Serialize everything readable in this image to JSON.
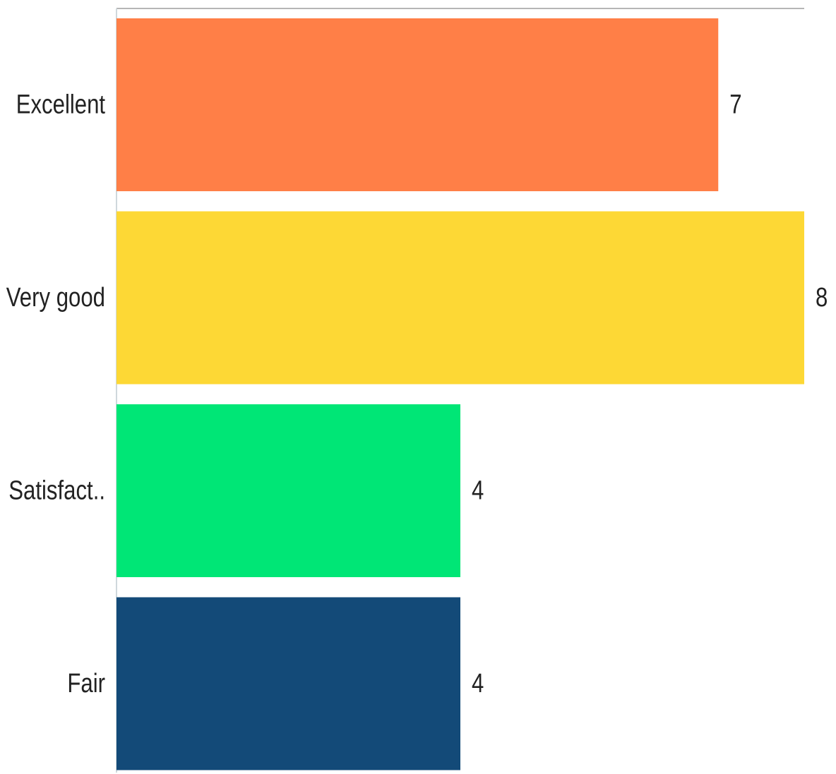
{
  "chart_data": {
    "type": "bar",
    "orientation": "horizontal",
    "categories": [
      "Excellent",
      "Very good",
      "Satisfact..",
      "Fair"
    ],
    "values": [
      7,
      8,
      4,
      4
    ],
    "colors": [
      "#FF7F47",
      "#FDD835",
      "#00E676",
      "#134A78"
    ],
    "title": "",
    "xlabel": "",
    "ylabel": "",
    "xlim": [
      0,
      8
    ],
    "grid": false,
    "legend": "none"
  }
}
